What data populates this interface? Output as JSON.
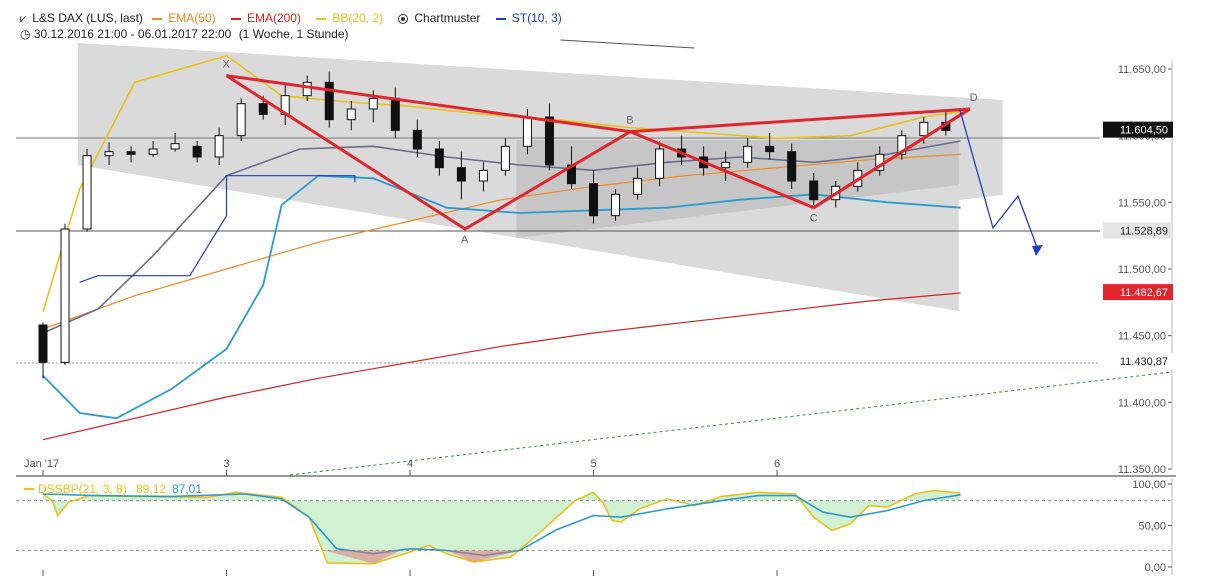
{
  "header": {
    "icon": "candlestick-icon",
    "instrument": "L&S DAX (LUS, last)",
    "indicators": [
      {
        "label": "EMA(50)",
        "color": "#f08a24"
      },
      {
        "label": "EMA(200)",
        "color": "#d61f1f"
      },
      {
        "label": "BB(20, 2)",
        "color": "#e8c21a"
      },
      {
        "label": "Chartmuster",
        "color": "#333333"
      },
      {
        "label": "ST(10, 3)",
        "color": "#1f3fbf"
      }
    ],
    "range": "30.12.2016 21:00 - 06.01.2017 22:00",
    "period": "(1 Woche, 1 Stunde)"
  },
  "chart_data": [
    {
      "type": "candlestick",
      "x_labels": [
        "Jan '17",
        "3",
        "4",
        "5",
        "6"
      ],
      "y_ticks": [
        "11.650,00",
        "11.600,00",
        "11.550,00",
        "11.500,00",
        "11.450,00",
        "11.400,00",
        "11.350,00"
      ],
      "ylim": [
        11350,
        11665
      ],
      "price_labels": [
        {
          "text": "11.604,50",
          "value": 11604.5,
          "bg": "#111111",
          "fg": "#ffffff"
        },
        {
          "text": "11.528,89",
          "value": 11528.89,
          "bg": "#e4e4e4",
          "fg": "#222222"
        },
        {
          "text": "11.482,67",
          "value": 11482.67,
          "bg": "#e0262d",
          "fg": "#ffffff"
        },
        {
          "text": "11.430,87",
          "value": 11430.87,
          "bg": "#ffffff",
          "fg": "#222222"
        }
      ],
      "pattern_points": [
        {
          "label": "X",
          "t": 1.0,
          "price": 11645
        },
        {
          "label": "A",
          "t": 2.3,
          "price": 11530
        },
        {
          "label": "B",
          "t": 3.2,
          "price": 11603
        },
        {
          "label": "C",
          "t": 4.2,
          "price": 11546
        },
        {
          "label": "D",
          "t": 5.05,
          "price": 11620
        }
      ],
      "candles": [
        [
          0.0,
          11458,
          11460,
          11418,
          11430
        ],
        [
          0.12,
          11430,
          11534,
          11428,
          11530
        ],
        [
          0.24,
          11530,
          11590,
          11528,
          11585
        ],
        [
          0.36,
          11585,
          11595,
          11578,
          11588
        ],
        [
          0.48,
          11588,
          11592,
          11580,
          11586
        ],
        [
          0.6,
          11586,
          11596,
          11584,
          11590
        ],
        [
          0.72,
          11590,
          11602,
          11588,
          11594
        ],
        [
          0.84,
          11592,
          11596,
          11580,
          11584
        ],
        [
          0.96,
          11584,
          11606,
          11578,
          11600
        ],
        [
          1.08,
          11600,
          11628,
          11596,
          11624
        ],
        [
          1.2,
          11624,
          11630,
          11612,
          11616
        ],
        [
          1.32,
          11616,
          11640,
          11608,
          11630
        ],
        [
          1.44,
          11630,
          11645,
          11626,
          11640
        ],
        [
          1.56,
          11640,
          11648,
          11606,
          11612
        ],
        [
          1.68,
          11612,
          11626,
          11604,
          11620
        ],
        [
          1.8,
          11620,
          11634,
          11610,
          11628
        ],
        [
          1.92,
          11628,
          11636,
          11598,
          11604
        ],
        [
          2.04,
          11604,
          11612,
          11584,
          11590
        ],
        [
          2.16,
          11590,
          11596,
          11570,
          11576
        ],
        [
          2.28,
          11576,
          11588,
          11552,
          11566
        ],
        [
          2.4,
          11566,
          11580,
          11558,
          11574
        ],
        [
          2.52,
          11574,
          11598,
          11570,
          11592
        ],
        [
          2.64,
          11592,
          11620,
          11586,
          11614
        ],
        [
          2.76,
          11614,
          11624,
          11574,
          11578
        ],
        [
          2.88,
          11578,
          11592,
          11560,
          11564
        ],
        [
          3.0,
          11564,
          11574,
          11534,
          11540
        ],
        [
          3.12,
          11540,
          11560,
          11536,
          11556
        ],
        [
          3.24,
          11556,
          11576,
          11552,
          11568
        ],
        [
          3.36,
          11568,
          11596,
          11562,
          11590
        ],
        [
          3.48,
          11590,
          11600,
          11578,
          11584
        ],
        [
          3.6,
          11584,
          11592,
          11570,
          11576
        ],
        [
          3.72,
          11576,
          11588,
          11566,
          11580
        ],
        [
          3.84,
          11580,
          11598,
          11576,
          11592
        ],
        [
          3.96,
          11592,
          11602,
          11582,
          11588
        ],
        [
          4.08,
          11588,
          11594,
          11560,
          11566
        ],
        [
          4.2,
          11566,
          11572,
          11548,
          11552
        ],
        [
          4.32,
          11552,
          11566,
          11546,
          11562
        ],
        [
          4.44,
          11562,
          11580,
          11558,
          11574
        ],
        [
          4.56,
          11574,
          11592,
          11570,
          11586
        ],
        [
          4.68,
          11586,
          11604,
          11582,
          11600
        ],
        [
          4.8,
          11600,
          11614,
          11594,
          11610
        ],
        [
          4.92,
          11610,
          11618,
          11600,
          11604
        ]
      ],
      "overlays": {
        "ema50": [
          [
            0.0,
            11455
          ],
          [
            0.5,
            11480
          ],
          [
            1.0,
            11500
          ],
          [
            1.5,
            11520
          ],
          [
            2.0,
            11536
          ],
          [
            2.5,
            11552
          ],
          [
            3.0,
            11562
          ],
          [
            3.5,
            11570
          ],
          [
            4.0,
            11576
          ],
          [
            4.5,
            11582
          ],
          [
            5.0,
            11586
          ]
        ],
        "ema200": [
          [
            0.0,
            11372
          ],
          [
            0.5,
            11388
          ],
          [
            1.0,
            11404
          ],
          [
            1.5,
            11418
          ],
          [
            2.0,
            11430
          ],
          [
            2.5,
            11442
          ],
          [
            3.0,
            11452
          ],
          [
            3.5,
            11460
          ],
          [
            4.0,
            11468
          ],
          [
            4.5,
            11476
          ],
          [
            5.0,
            11482
          ]
        ],
        "bb_upper": [
          [
            0.0,
            11468
          ],
          [
            0.2,
            11560
          ],
          [
            0.5,
            11640
          ],
          [
            1.0,
            11660
          ],
          [
            1.3,
            11630
          ],
          [
            1.6,
            11626
          ],
          [
            2.0,
            11622
          ],
          [
            2.4,
            11616
          ],
          [
            2.8,
            11612
          ],
          [
            3.2,
            11606
          ],
          [
            3.6,
            11602
          ],
          [
            4.0,
            11598
          ],
          [
            4.4,
            11600
          ],
          [
            4.8,
            11614
          ],
          [
            5.0,
            11618
          ]
        ],
        "bb_mid": [
          [
            0.0,
            11452
          ],
          [
            0.3,
            11470
          ],
          [
            0.6,
            11510
          ],
          [
            1.0,
            11570
          ],
          [
            1.4,
            11590
          ],
          [
            1.8,
            11592
          ],
          [
            2.2,
            11584
          ],
          [
            2.6,
            11578
          ],
          [
            3.0,
            11574
          ],
          [
            3.4,
            11580
          ],
          [
            3.8,
            11584
          ],
          [
            4.2,
            11580
          ],
          [
            4.6,
            11586
          ],
          [
            5.0,
            11596
          ]
        ],
        "bb_lower": [
          [
            0.0,
            11420
          ],
          [
            0.2,
            11392
          ],
          [
            0.4,
            11388
          ],
          [
            0.7,
            11410
          ],
          [
            1.0,
            11440
          ],
          [
            1.2,
            11488
          ],
          [
            1.3,
            11548
          ],
          [
            1.5,
            11570
          ],
          [
            1.8,
            11568
          ],
          [
            2.2,
            11546
          ],
          [
            2.6,
            11542
          ],
          [
            3.0,
            11544
          ],
          [
            3.4,
            11546
          ],
          [
            3.8,
            11552
          ],
          [
            4.2,
            11556
          ],
          [
            4.6,
            11550
          ],
          [
            5.0,
            11546
          ]
        ],
        "supertrend": [
          [
            0.2,
            11490
          ],
          [
            0.3,
            11495
          ],
          [
            0.8,
            11495
          ],
          [
            1.0,
            11540
          ],
          [
            1.0,
            11570
          ],
          [
            1.7,
            11570
          ],
          [
            1.7,
            11565
          ]
        ]
      }
    },
    {
      "type": "line",
      "indicator_label": "DSSBP(21, 3, 8)",
      "series": [
        {
          "name": "DSSBP(21, 3, 8)",
          "value_label": "89,12",
          "color": "#e8c21a"
        },
        {
          "name": "",
          "value_label": "87,01",
          "color": "#2a9bd0"
        }
      ],
      "y_ticks": [
        "100,00",
        "50,00",
        "0,00"
      ],
      "ylim": [
        0,
        100
      ]
    }
  ]
}
